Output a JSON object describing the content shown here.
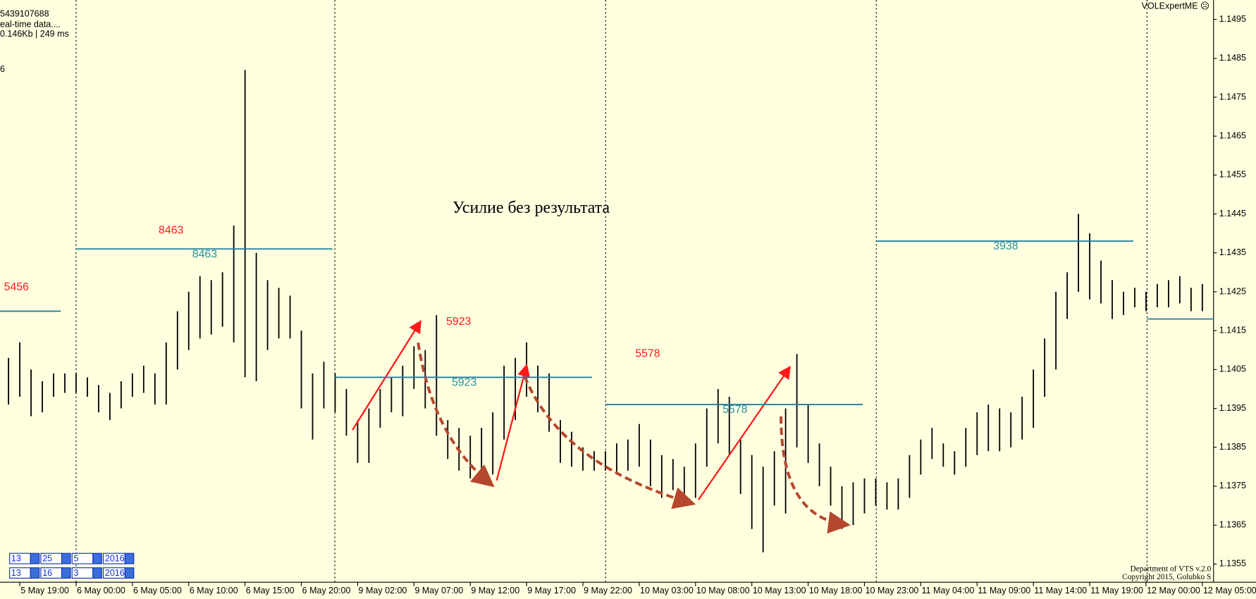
{
  "header": {
    "account": "5439107688",
    "status": "eal-time data....",
    "traffic": "0.146Kb | 249 ms",
    "other": "6",
    "indicator": "VOLExpertME ☹"
  },
  "footer": {
    "department": "Department of VTS  v.2.0",
    "copyright": "Copyright 2015, Golubko S"
  },
  "date_panel": [
    [
      13,
      25,
      5,
      2016
    ],
    [
      13,
      16,
      3,
      2016
    ]
  ],
  "chart_data": {
    "type": "hilo",
    "annotation": "Усилие без результата",
    "color": "#000000",
    "categories": [
      null,
      "5 May 19:00",
      null,
      null,
      null,
      null,
      "6 May 00:00",
      null,
      null,
      null,
      null,
      "6 May 05:00",
      null,
      null,
      null,
      null,
      "6 May 10:00",
      null,
      null,
      null,
      null,
      "6 May 15:00",
      null,
      null,
      null,
      null,
      "6 May 20:00",
      null,
      null,
      null,
      null,
      "9 May 02:00",
      null,
      null,
      null,
      null,
      "9 May 07:00",
      null,
      null,
      null,
      null,
      "9 May 12:00",
      null,
      null,
      null,
      null,
      "9 May 17:00",
      null,
      null,
      null,
      null,
      "9 May 22:00",
      null,
      null,
      null,
      null,
      "10 May 03:00",
      null,
      null,
      null,
      null,
      "10 May 08:00",
      null,
      null,
      null,
      null,
      "10 May 13:00",
      null,
      null,
      null,
      null,
      "10 May 18:00",
      null,
      null,
      null,
      null,
      "10 May 23:00",
      null,
      null,
      null,
      null,
      "11 May 04:00",
      null,
      null,
      null,
      null,
      "11 May 09:00",
      null,
      null,
      null,
      null,
      "11 May 14:00",
      null,
      null,
      null,
      null,
      "11 May 19:00",
      null,
      null,
      null,
      null,
      "12 May 00:00",
      null,
      null,
      null,
      null,
      "12 May 05:00"
    ],
    "high": [
      1.1408,
      1.1412,
      1.1405,
      1.1402,
      1.1404,
      1.1404,
      1.1404,
      1.1403,
      1.1401,
      1.1399,
      1.1402,
      1.1404,
      1.1406,
      1.1404,
      1.1412,
      1.142,
      1.1425,
      1.1429,
      1.1428,
      1.143,
      1.1442,
      1.1482,
      1.1435,
      1.1428,
      1.1426,
      1.1424,
      1.1415,
      1.1404,
      1.1407,
      1.1404,
      1.14,
      1.1392,
      1.1395,
      1.14,
      1.1403,
      1.1406,
      1.1411,
      1.141,
      1.1419,
      1.1392,
      1.139,
      1.1388,
      1.139,
      1.1394,
      1.1406,
      1.1408,
      1.1412,
      1.1406,
      1.1404,
      1.1392,
      1.1389,
      1.1385,
      1.1384,
      1.1384,
      1.1386,
      1.1387,
      1.1391,
      1.1387,
      1.1383,
      1.1382,
      1.138,
      1.1386,
      1.1395,
      1.14,
      1.1398,
      1.1387,
      1.1383,
      1.138,
      1.1384,
      1.1395,
      1.1409,
      1.1396,
      1.1386,
      1.138,
      1.1375,
      1.1376,
      1.1377,
      1.1377,
      1.1376,
      1.1377,
      1.1383,
      1.1387,
      1.139,
      1.1386,
      1.1384,
      1.139,
      1.1394,
      1.1396,
      1.1395,
      1.1394,
      1.1398,
      1.1405,
      1.1413,
      1.1425,
      1.143,
      1.1445,
      1.144,
      1.1433,
      1.1428,
      1.1425,
      1.1426,
      1.1425,
      1.1427,
      1.1428,
      1.1429,
      1.1426,
      1.1427
    ],
    "low": [
      1.1396,
      1.1398,
      1.1393,
      1.1394,
      1.1398,
      1.1399,
      1.1399,
      1.1398,
      1.1394,
      1.1392,
      1.1395,
      1.1398,
      1.1399,
      1.1396,
      1.1396,
      1.1405,
      1.141,
      1.1413,
      1.1414,
      1.1416,
      1.1412,
      1.1403,
      1.1402,
      1.141,
      1.1413,
      1.1413,
      1.1395,
      1.1387,
      1.1395,
      1.1394,
      1.1388,
      1.1381,
      1.1381,
      1.139,
      1.1394,
      1.1393,
      1.14,
      1.1395,
      1.1388,
      1.1382,
      1.1379,
      1.1377,
      1.1376,
      1.1378,
      1.1387,
      1.1392,
      1.1398,
      1.1394,
      1.1389,
      1.1381,
      1.138,
      1.1379,
      1.1379,
      1.1379,
      1.1378,
      1.1379,
      1.138,
      1.1375,
      1.1372,
      1.1374,
      1.1371,
      1.1372,
      1.138,
      1.1386,
      1.1383,
      1.1373,
      1.1364,
      1.1358,
      1.137,
      1.1368,
      1.1385,
      1.1381,
      1.1375,
      1.137,
      1.1364,
      1.1365,
      1.1368,
      1.137,
      1.1369,
      1.1369,
      1.1372,
      1.1378,
      1.1382,
      1.138,
      1.1378,
      1.138,
      1.1383,
      1.1384,
      1.1384,
      1.1385,
      1.1387,
      1.139,
      1.1398,
      1.1405,
      1.1418,
      1.1425,
      1.1423,
      1.1422,
      1.1418,
      1.1419,
      1.1421,
      1.142,
      1.1421,
      1.1421,
      1.1422,
      1.142,
      1.142
    ],
    "levels": [
      {
        "price": 1.142,
        "volume": 5456
      },
      {
        "price": 1.1436,
        "volume": 8463
      },
      {
        "price": 1.1403,
        "volume": 5923
      },
      {
        "price": 1.1396,
        "volume": 5578
      },
      {
        "price": 1.1438,
        "volume": 3938
      },
      {
        "price": 1.1418
      }
    ],
    "ylim": [
      1.135,
      1.15
    ],
    "yticks": [
      1.1495,
      1.1485,
      1.1475,
      1.1465,
      1.1455,
      1.1445,
      1.1435,
      1.1425,
      1.1415,
      1.1405,
      1.1395,
      1.1385,
      1.1375,
      1.1365,
      1.1355
    ]
  }
}
